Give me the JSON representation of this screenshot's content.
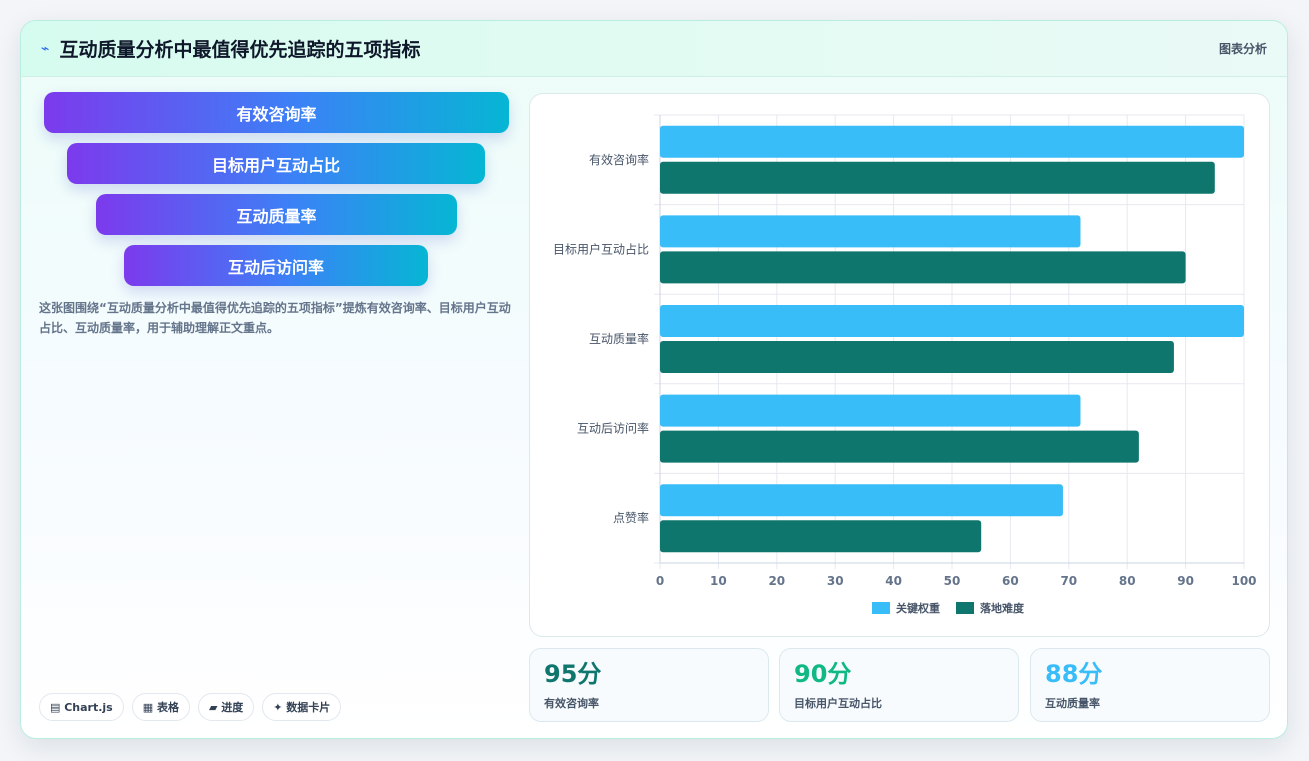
{
  "header": {
    "icon": "chart-line-icon",
    "title": "互动质量分析中最值得优先追踪的五项指标",
    "tag": "图表分析"
  },
  "funnel": [
    "有效咨询率",
    "目标用户互动占比",
    "互动质量率",
    "互动后访问率"
  ],
  "description": "这张图围绕“互动质量分析中最值得优先追踪的五项指标”提炼有效咨询率、目标用户互动占比、互动质量率，用于辅助理解正文重点。",
  "chips": [
    "▤ Chart.js",
    "▦ 表格",
    "▰ 进度",
    "✦ 数据卡片"
  ],
  "kpis": [
    {
      "value": "95分",
      "label": "有效咨询率",
      "color": "#0f766e"
    },
    {
      "value": "90分",
      "label": "目标用户互动占比",
      "color": "#10b981"
    },
    {
      "value": "88分",
      "label": "互动质量率",
      "color": "#38bdf8"
    }
  ],
  "chart_data": {
    "type": "bar",
    "orientation": "horizontal",
    "categories": [
      "有效咨询率",
      "目标用户互动占比",
      "互动质量率",
      "互动后访问率",
      "点赞率"
    ],
    "series": [
      {
        "name": "关键权重",
        "color": "#38bdf8",
        "values": [
          100,
          72,
          100,
          72,
          69
        ]
      },
      {
        "name": "落地难度",
        "color": "#0f766e",
        "values": [
          95,
          90,
          88,
          82,
          55
        ]
      }
    ],
    "xlim": [
      0,
      100
    ],
    "xticks": [
      0,
      10,
      20,
      30,
      40,
      50,
      60,
      70,
      80,
      90,
      100
    ],
    "grid": true,
    "legend": "bottom"
  }
}
